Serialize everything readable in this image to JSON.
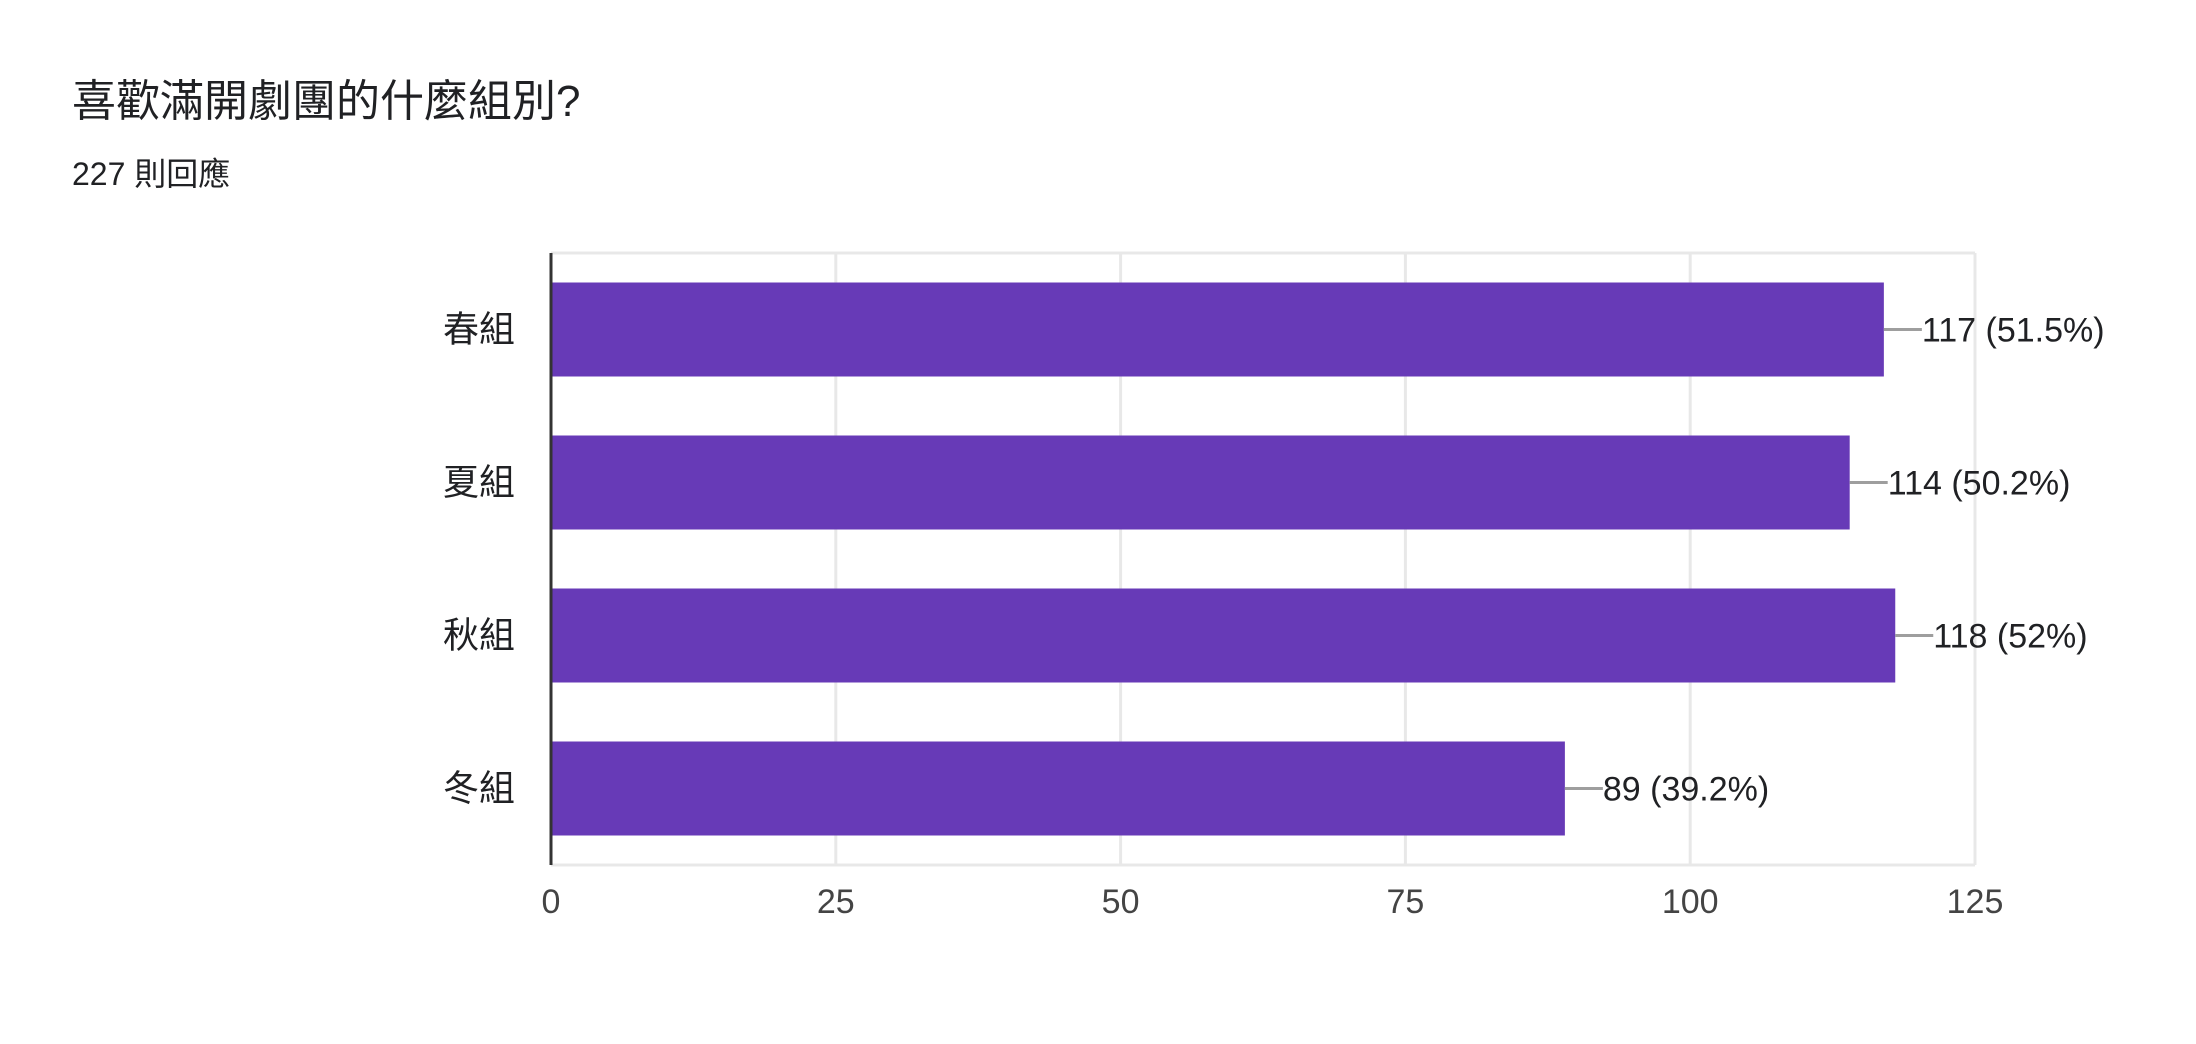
{
  "form_summary": {
    "question": "喜歡滿開劇團的什麼組別?",
    "response_count": "227 則回應"
  },
  "chart_data": {
    "type": "bar",
    "orientation": "horizontal",
    "categories": [
      "春組",
      "夏組",
      "秋組",
      "冬組"
    ],
    "values": [
      117,
      114,
      118,
      89
    ],
    "data_labels": [
      "117 (51.5%)",
      "114 (50.2%)",
      "118 (52%)",
      "89 (39.2%)"
    ],
    "percentages": [
      51.5,
      50.2,
      52,
      39.2
    ],
    "xlim": [
      0,
      125
    ],
    "xticks": [
      0,
      25,
      50,
      75,
      100,
      125
    ],
    "grid": true,
    "colors": {
      "bar": "#673ab7",
      "grid": "#e8e8e8",
      "axis": "#333333",
      "leader": "#9e9e9e",
      "text": "#202124",
      "tick_text": "#444444"
    }
  }
}
